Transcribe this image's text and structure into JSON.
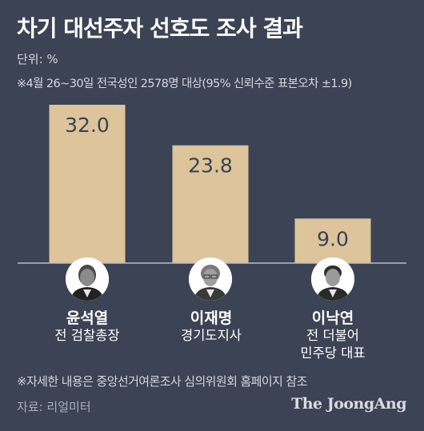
{
  "header": {
    "title": "차기 대선주자 선호도 조사 결과",
    "unit": "단위: %",
    "note": "※4월 26~30일 전국성인 2578명 대상(95% 신뢰수준 표본오차 ±1.9)"
  },
  "chart_data": {
    "type": "bar",
    "title": "차기 대선주자 선호도 조사 결과",
    "categories": [
      "윤석열",
      "이재명",
      "이낙연"
    ],
    "values": [
      32.0,
      23.8,
      9.0
    ],
    "value_labels": [
      "32.0",
      "23.8",
      "9.0"
    ],
    "ylim": [
      0,
      32
    ],
    "grid": false,
    "bar_color": "#ddc49b"
  },
  "candidates": [
    {
      "name": "윤석열",
      "role_lines": [
        "전 검찰총장"
      ]
    },
    {
      "name": "이재명",
      "role_lines": [
        "경기도지사"
      ]
    },
    {
      "name": "이낙연",
      "role_lines": [
        "전 더불어",
        "민주당 대표"
      ]
    }
  ],
  "footer": {
    "footnote": "※자세한 내용은 중앙선거여론조사 심의위원회 홈페이지 참조",
    "source": "자료: 리얼미터",
    "logo": "The JoongAng"
  },
  "colors": {
    "background": "#3b4354",
    "bar": "#ddc49b",
    "text": "#ffffff",
    "muted_text": "#d4d7de"
  }
}
